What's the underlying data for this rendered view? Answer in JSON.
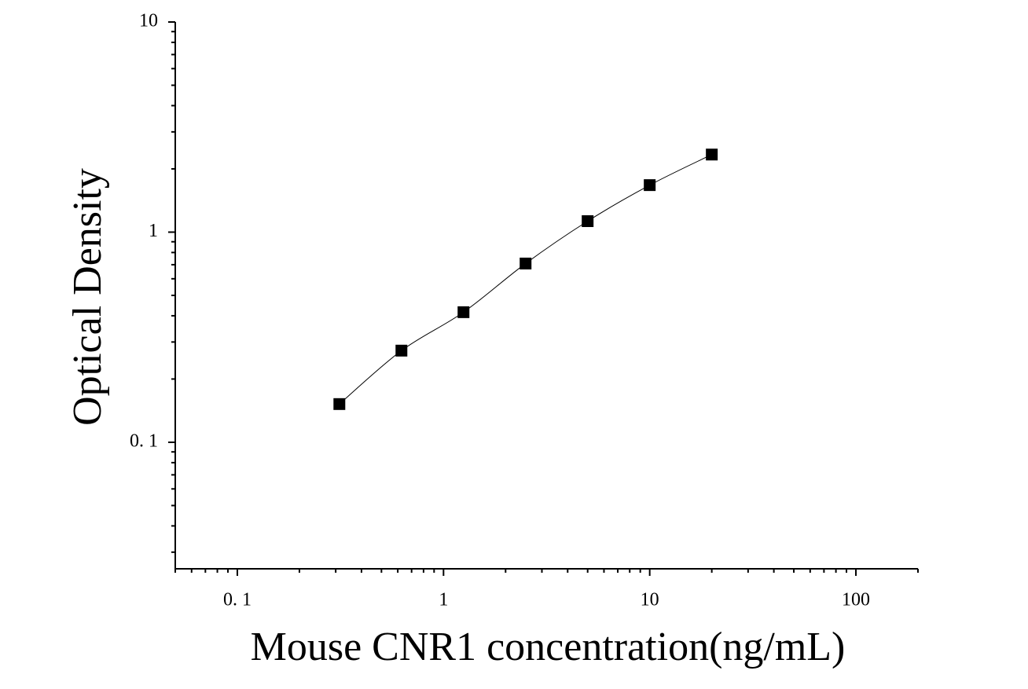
{
  "chart_data": {
    "type": "scatter",
    "line": true,
    "x_label": "Mouse CNR1 concentration(ng/mL)",
    "y_label": "Optical Density",
    "x": [
      0.3125,
      0.625,
      1.25,
      2.5,
      5,
      10,
      20
    ],
    "series": [
      {
        "color": "#000000",
        "values": [
          0.152,
          0.273,
          0.416,
          0.709,
          1.128,
          1.674,
          2.34
        ]
      }
    ],
    "xscale": "log",
    "yscale": "log",
    "xlim": [
      0.05,
      200
    ],
    "ylim": [
      0.025,
      10
    ],
    "xticks": [
      {
        "value": 0.1,
        "label": "0. 1"
      },
      1,
      10,
      100
    ],
    "yticks": [
      {
        "value": 0.1,
        "label": "0. 1"
      },
      1,
      10
    ],
    "xminorticks": [
      0.05,
      0.06,
      0.07,
      0.08,
      0.09,
      0.2,
      0.3,
      0.4,
      0.5,
      0.6,
      0.7,
      0.8,
      0.9,
      2,
      3,
      4,
      5,
      6,
      7,
      8,
      9,
      20,
      30,
      40,
      50,
      60,
      70,
      80,
      90,
      200
    ],
    "yminorticks": [
      0.03,
      0.04,
      0.05,
      0.06,
      0.07,
      0.08,
      0.09,
      0.2,
      0.3,
      0.4,
      0.5,
      0.6,
      0.7,
      0.8,
      0.9,
      2,
      3,
      4,
      5,
      6,
      7,
      8,
      9
    ],
    "grid": false
  }
}
